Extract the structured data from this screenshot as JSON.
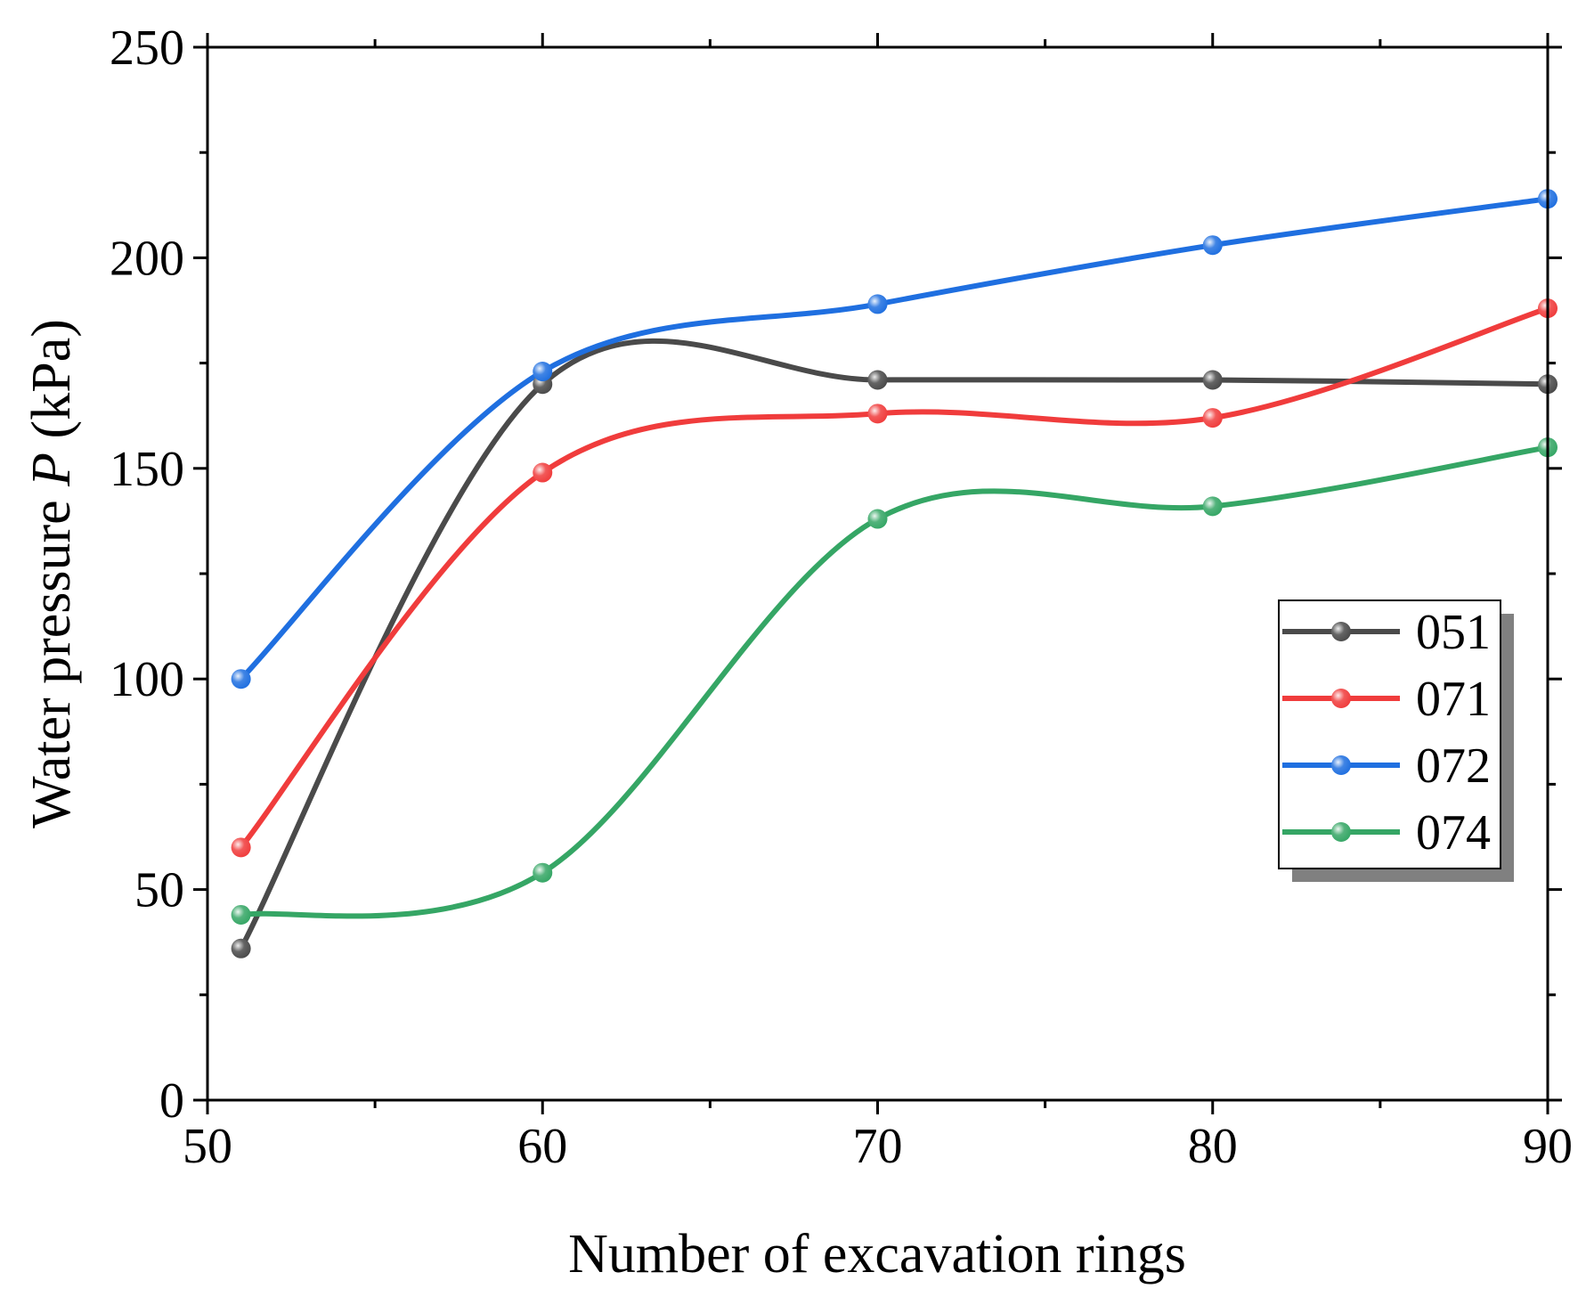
{
  "chart_data": {
    "type": "line",
    "smooth": true,
    "title": "",
    "xlabel": "Number of excavation rings",
    "ylabel": {
      "prefix": "Water pressure ",
      "symbol": "P",
      "suffix": " (kPa)"
    },
    "xlim": [
      50,
      90
    ],
    "ylim": [
      0,
      250
    ],
    "xticks": [
      50,
      60,
      70,
      80,
      90
    ],
    "xtick_labels": [
      "50",
      "60",
      "70",
      "80",
      "90"
    ],
    "yticks": [
      0,
      50,
      100,
      150,
      200,
      250
    ],
    "ytick_labels": [
      "0",
      "50",
      "100",
      "150",
      "200",
      "250"
    ],
    "x": [
      51,
      60,
      70,
      80,
      90
    ],
    "grid": false,
    "legend_position": "right",
    "series": [
      {
        "name": "051",
        "color": "#4a4a4a",
        "values": [
          36,
          170,
          171,
          171,
          170
        ]
      },
      {
        "name": "071",
        "color": "#f03c3c",
        "values": [
          60,
          149,
          163,
          162,
          188
        ]
      },
      {
        "name": "072",
        "color": "#1f6fe0",
        "values": [
          100,
          173,
          189,
          203,
          214
        ]
      },
      {
        "name": "074",
        "color": "#35a665",
        "values": [
          44,
          54,
          138,
          141,
          155
        ]
      }
    ]
  }
}
